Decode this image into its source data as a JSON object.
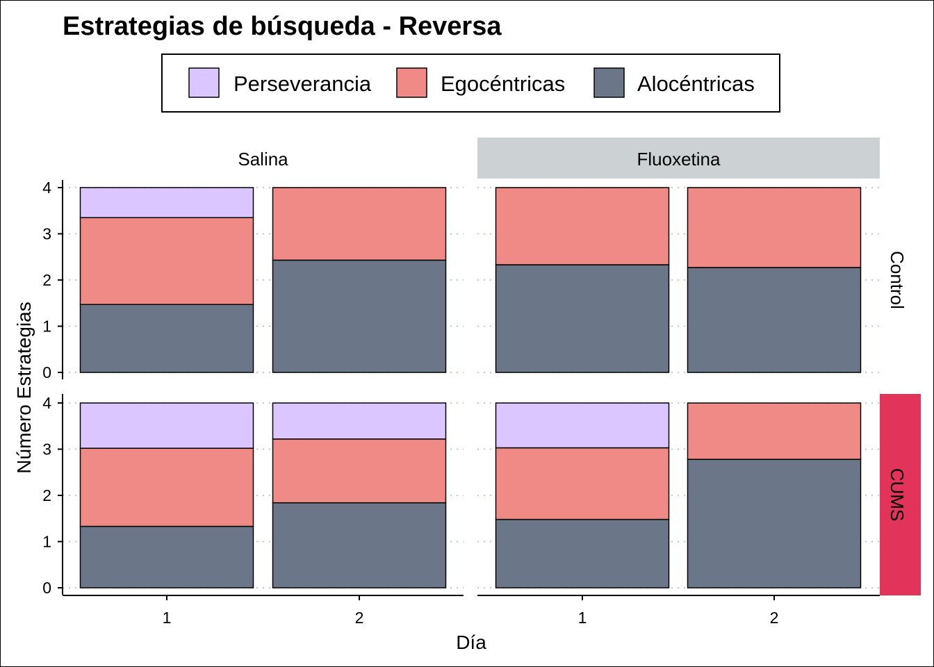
{
  "chart_data": {
    "type": "bar",
    "stacked": true,
    "title": "Estrategias de búsqueda - Reversa",
    "xlabel": "Día",
    "ylabel": "Número Estrategias",
    "legend": {
      "position": "top",
      "entries": [
        {
          "name": "Perseverancia",
          "color": "#DCC6FF"
        },
        {
          "name": "Egocéntricas",
          "color": "#F08A87"
        },
        {
          "name": "Alocéntricas",
          "color": "#6B7789"
        }
      ]
    },
    "facet_columns": [
      "Salina",
      "Fluoxetina"
    ],
    "facet_rows": [
      "Control",
      "CUMS"
    ],
    "strip_colors": {
      "Fluoxetina": "#CCD1D4",
      "CUMS": "#E2335A"
    },
    "x_categories": [
      "1",
      "2"
    ],
    "ylim": [
      0,
      4
    ],
    "y_ticks": [
      "0",
      "1",
      "2",
      "3",
      "4"
    ],
    "grid": "horizontal dotted",
    "panels": [
      {
        "row": "Control",
        "col": "Salina",
        "days": [
          {
            "day": "1",
            "Alocéntricas": 1.47,
            "Egocéntricas": 1.88,
            "Perseverancia": 0.65
          },
          {
            "day": "2",
            "Alocéntricas": 2.43,
            "Egocéntricas": 1.57,
            "Perseverancia": 0
          }
        ]
      },
      {
        "row": "Control",
        "col": "Fluoxetina",
        "days": [
          {
            "day": "1",
            "Alocéntricas": 2.33,
            "Egocéntricas": 1.67,
            "Perseverancia": 0
          },
          {
            "day": "2",
            "Alocéntricas": 2.27,
            "Egocéntricas": 1.73,
            "Perseverancia": 0
          }
        ]
      },
      {
        "row": "CUMS",
        "col": "Salina",
        "days": [
          {
            "day": "1",
            "Alocéntricas": 1.33,
            "Egocéntricas": 1.69,
            "Perseverancia": 0.98
          },
          {
            "day": "2",
            "Alocéntricas": 1.84,
            "Egocéntricas": 1.38,
            "Perseverancia": 0.78
          }
        ]
      },
      {
        "row": "CUMS",
        "col": "Fluoxetina",
        "days": [
          {
            "day": "1",
            "Alocéntricas": 1.48,
            "Egocéntricas": 1.55,
            "Perseverancia": 0.97
          },
          {
            "day": "2",
            "Alocéntricas": 2.78,
            "Egocéntricas": 1.22,
            "Perseverancia": 0
          }
        ]
      }
    ]
  }
}
